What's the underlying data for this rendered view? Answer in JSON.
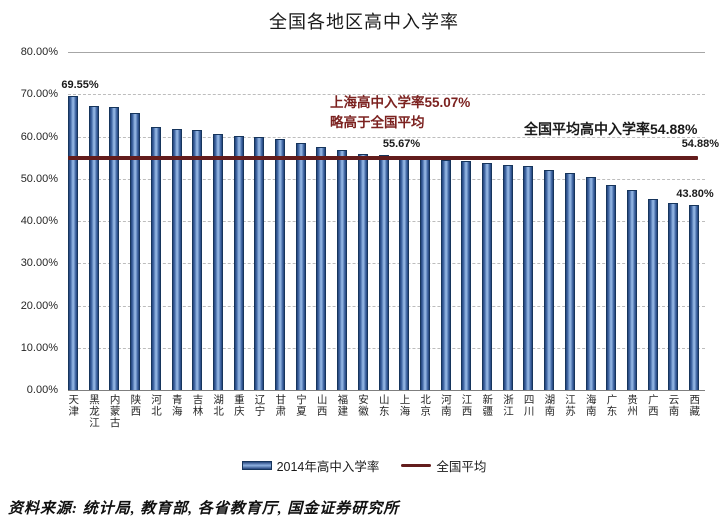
{
  "title": "全国各地区高中入学率",
  "chart_data": {
    "type": "bar",
    "title": "全国各地区高中入学率",
    "xlabel": "",
    "ylabel": "",
    "ylim": [
      0,
      80
    ],
    "y_ticks": [
      "0.00%",
      "10.00%",
      "20.00%",
      "30.00%",
      "40.00%",
      "50.00%",
      "60.00%",
      "70.00%",
      "80.00%"
    ],
    "grid": "dashed-horizontal",
    "legend_position": "bottom",
    "categories": [
      "天津",
      "黑龙江",
      "内蒙古",
      "陕西",
      "河北",
      "青海",
      "吉林",
      "湖北",
      "重庆",
      "辽宁",
      "甘肃",
      "宁夏",
      "山西",
      "福建",
      "安徽",
      "山东",
      "上海",
      "北京",
      "河南",
      "江西",
      "新疆",
      "浙江",
      "四川",
      "湖南",
      "江苏",
      "海南",
      "广东",
      "贵州",
      "广西",
      "云南",
      "西藏"
    ],
    "series": [
      {
        "name": "2014年高中入学率",
        "values": [
          69.55,
          67.2,
          67.0,
          65.5,
          62.3,
          61.8,
          61.6,
          60.5,
          60.2,
          60.0,
          59.5,
          58.4,
          57.4,
          56.8,
          55.9,
          55.67,
          55.07,
          54.6,
          54.5,
          54.2,
          53.7,
          53.2,
          53.0,
          52.1,
          51.3,
          50.4,
          48.5,
          47.4,
          45.2,
          44.2,
          43.8
        ]
      }
    ],
    "average_line": {
      "name": "全国平均",
      "value": 54.88
    },
    "bar_labels": [
      {
        "index": 0,
        "text": "69.55%",
        "dx": 7
      },
      {
        "index": 15,
        "text": "55.67%",
        "dx": 18
      },
      {
        "index": 30,
        "text": "43.80%",
        "dx": 1
      }
    ],
    "colors": {
      "bar_fill": "#8fb2e0",
      "bar_edge": "#16355c",
      "average_line": "#631c1c",
      "annotation_red": "#7c2220",
      "gridline": "#bdbdbd"
    }
  },
  "annotations": {
    "shanghai_line1": "上海高中入学率55.07%",
    "shanghai_line2": "略高于全国平均",
    "national_avg": "全国平均高中入学率54.88%",
    "avg_right_value": "54.88%"
  },
  "legend": [
    {
      "swatch": "bar",
      "label": "2014年高中入学率"
    },
    {
      "swatch": "line",
      "label": "全国平均"
    }
  ],
  "source": "资料来源: 统计局, 教育部, 各省教育厅, 国金证券研究所"
}
